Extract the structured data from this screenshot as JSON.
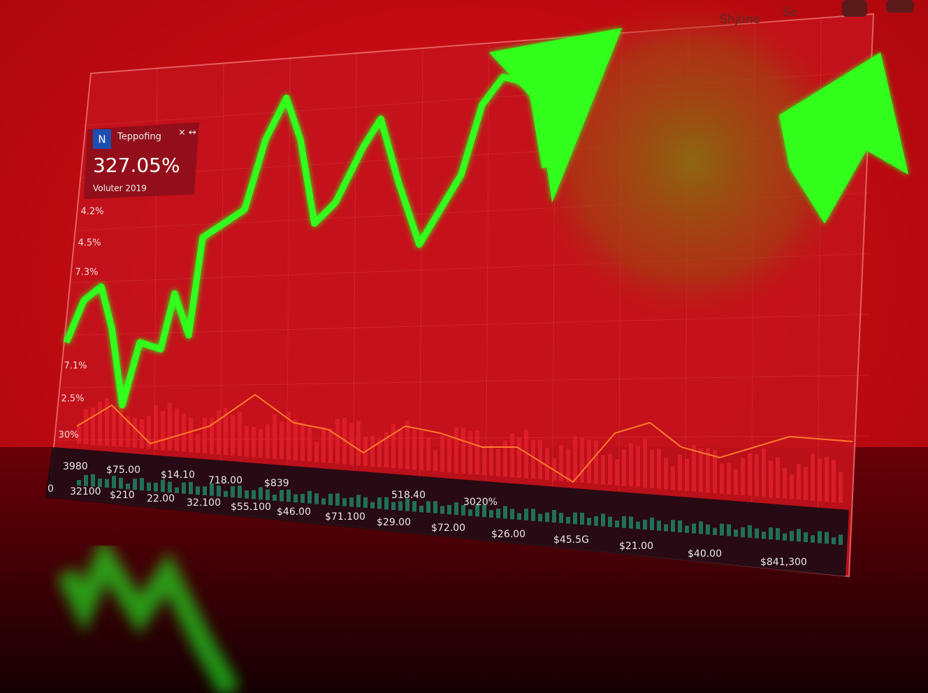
{
  "toolbar": {
    "user": "Shjone",
    "search": "Se"
  },
  "tooltip": {
    "badge": "N",
    "title": "Teppofing",
    "value": "327.05%",
    "subtitle": "Voluter 2019"
  },
  "y_axis_labels": [
    "4.2%",
    "4.5%",
    "7.3%",
    "7.1%",
    "2.5%",
    "30%"
  ],
  "volume_labels": [
    "3980",
    "$75.00",
    "$14.10",
    "718.00",
    "$839",
    "518.40",
    "3020%"
  ],
  "price_labels": [
    "0",
    "32100",
    "$210",
    "22.00",
    "32.100",
    "$55.100",
    "$46.00",
    "$71.100",
    "$29.00",
    "$72.00",
    "$26.00",
    "$45.5G",
    "$21.00",
    "$40.00",
    "$841,300"
  ]
}
